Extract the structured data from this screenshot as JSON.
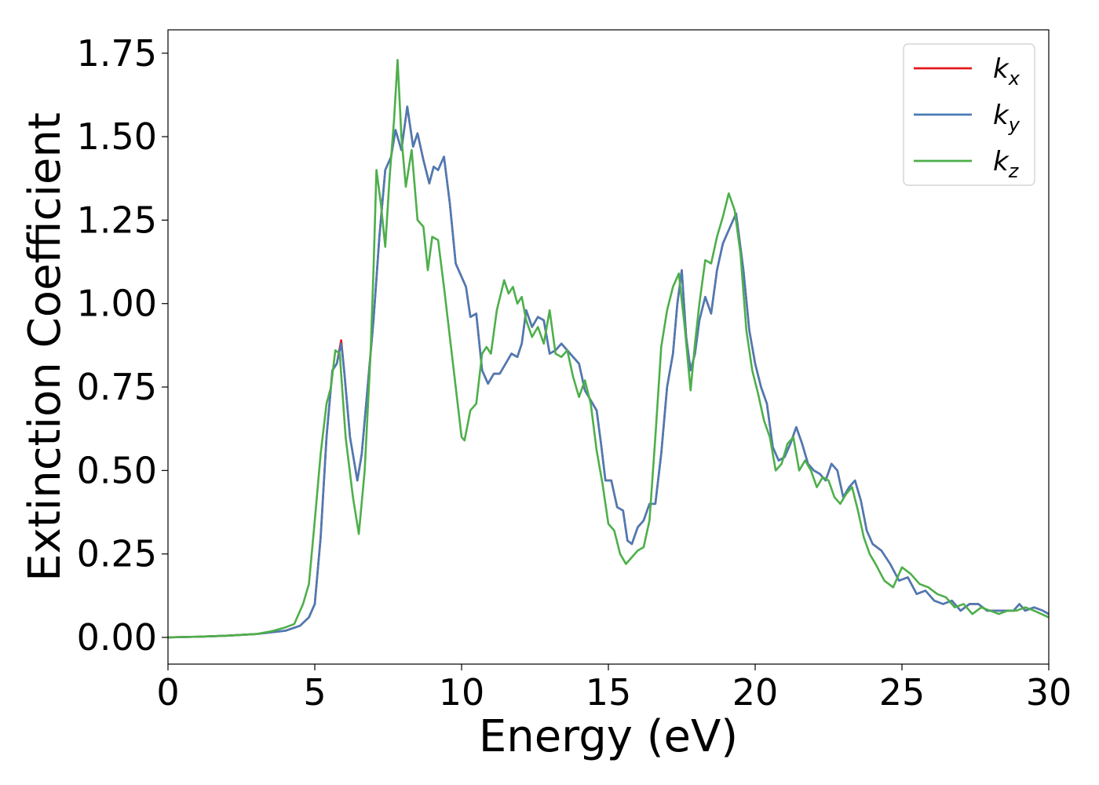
{
  "chart_data": {
    "type": "line",
    "xlabel": "Energy (eV)",
    "ylabel": "Extinction Coefficient",
    "xlim": [
      0,
      30
    ],
    "ylim": [
      -0.08,
      1.82
    ],
    "xticks": [
      0,
      5,
      10,
      15,
      20,
      25,
      30
    ],
    "xtick_labels": [
      "0",
      "5",
      "10",
      "15",
      "20",
      "25",
      "30"
    ],
    "yticks": [
      0.0,
      0.25,
      0.5,
      0.75,
      1.0,
      1.25,
      1.5,
      1.75
    ],
    "ytick_labels": [
      "0.00",
      "0.25",
      "0.50",
      "0.75",
      "1.00",
      "1.25",
      "1.50",
      "1.75"
    ],
    "grid": false,
    "legend_position": "top-right",
    "series": [
      {
        "name": "k_x",
        "label_base": "k",
        "label_sub": "x",
        "color": "#e41a1c",
        "x": [
          0,
          1,
          2,
          3,
          3.5,
          4,
          4.5,
          4.8,
          5,
          5.2,
          5.4,
          5.6,
          5.75,
          5.9,
          6.0,
          6.2,
          6.45,
          6.6,
          6.8,
          7.0,
          7.2,
          7.4,
          7.6,
          7.75,
          7.95,
          8.15,
          8.35,
          8.5,
          8.7,
          8.9,
          9.05,
          9.2,
          9.4,
          9.6,
          9.8,
          10.0,
          10.15,
          10.3,
          10.5,
          10.7,
          10.9,
          11.1,
          11.3,
          11.5,
          11.7,
          11.9,
          12.05,
          12.2,
          12.4,
          12.6,
          12.8,
          13.0,
          13.2,
          13.4,
          13.6,
          13.8,
          14.0,
          14.2,
          14.4,
          14.6,
          14.75,
          14.9,
          15.1,
          15.3,
          15.5,
          15.65,
          15.8,
          16.0,
          16.2,
          16.4,
          16.6,
          16.8,
          17.0,
          17.2,
          17.35,
          17.5,
          17.65,
          17.8,
          17.95,
          18.1,
          18.3,
          18.5,
          18.7,
          18.9,
          19.1,
          19.35,
          19.6,
          19.8,
          20.0,
          20.2,
          20.4,
          20.6,
          20.8,
          21.0,
          21.2,
          21.4,
          21.6,
          21.8,
          22.0,
          22.2,
          22.4,
          22.6,
          22.8,
          23.0,
          23.2,
          23.4,
          23.6,
          23.8,
          24.0,
          24.3,
          24.6,
          24.9,
          25.2,
          25.5,
          25.8,
          26.1,
          26.4,
          26.7,
          27.0,
          27.3,
          27.6,
          27.9,
          28.2,
          28.5,
          28.8,
          29.0,
          29.2,
          29.5,
          29.8,
          30.0
        ],
        "y": [
          0,
          0.002,
          0.005,
          0.01,
          0.015,
          0.02,
          0.035,
          0.06,
          0.1,
          0.3,
          0.6,
          0.8,
          0.82,
          0.89,
          0.8,
          0.6,
          0.47,
          0.55,
          0.75,
          0.95,
          1.2,
          1.4,
          1.44,
          1.52,
          1.46,
          1.59,
          1.47,
          1.51,
          1.43,
          1.36,
          1.41,
          1.4,
          1.44,
          1.3,
          1.12,
          1.08,
          1.05,
          0.96,
          0.97,
          0.8,
          0.76,
          0.79,
          0.79,
          0.82,
          0.85,
          0.84,
          0.88,
          0.98,
          0.93,
          0.96,
          0.95,
          0.85,
          0.86,
          0.88,
          0.86,
          0.84,
          0.82,
          0.74,
          0.71,
          0.68,
          0.58,
          0.47,
          0.47,
          0.39,
          0.38,
          0.29,
          0.28,
          0.33,
          0.35,
          0.4,
          0.4,
          0.55,
          0.75,
          0.85,
          1.0,
          1.1,
          0.9,
          0.8,
          0.85,
          0.95,
          1.02,
          0.97,
          1.1,
          1.18,
          1.22,
          1.27,
          1.1,
          0.92,
          0.82,
          0.75,
          0.7,
          0.57,
          0.53,
          0.54,
          0.58,
          0.63,
          0.58,
          0.52,
          0.5,
          0.49,
          0.47,
          0.52,
          0.5,
          0.42,
          0.45,
          0.47,
          0.41,
          0.32,
          0.28,
          0.26,
          0.22,
          0.17,
          0.18,
          0.13,
          0.14,
          0.11,
          0.1,
          0.11,
          0.08,
          0.1,
          0.1,
          0.08,
          0.08,
          0.08,
          0.08,
          0.1,
          0.08,
          0.09,
          0.08,
          0.07
        ]
      },
      {
        "name": "k_y",
        "label_base": "k",
        "label_sub": "y",
        "color": "#4a7bb5",
        "x": [
          0,
          1,
          2,
          3,
          3.5,
          4,
          4.5,
          4.8,
          5,
          5.2,
          5.4,
          5.6,
          5.75,
          5.9,
          6.0,
          6.2,
          6.45,
          6.6,
          6.8,
          7.0,
          7.2,
          7.4,
          7.6,
          7.75,
          7.95,
          8.15,
          8.35,
          8.5,
          8.7,
          8.9,
          9.05,
          9.2,
          9.4,
          9.6,
          9.8,
          10.0,
          10.15,
          10.3,
          10.5,
          10.7,
          10.9,
          11.1,
          11.3,
          11.5,
          11.7,
          11.9,
          12.05,
          12.2,
          12.4,
          12.6,
          12.8,
          13.0,
          13.2,
          13.4,
          13.6,
          13.8,
          14.0,
          14.2,
          14.4,
          14.6,
          14.75,
          14.9,
          15.1,
          15.3,
          15.5,
          15.65,
          15.8,
          16.0,
          16.2,
          16.4,
          16.6,
          16.8,
          17.0,
          17.2,
          17.35,
          17.5,
          17.65,
          17.8,
          17.95,
          18.1,
          18.3,
          18.5,
          18.7,
          18.9,
          19.1,
          19.35,
          19.6,
          19.8,
          20.0,
          20.2,
          20.4,
          20.6,
          20.8,
          21.0,
          21.2,
          21.4,
          21.6,
          21.8,
          22.0,
          22.2,
          22.4,
          22.6,
          22.8,
          23.0,
          23.2,
          23.4,
          23.6,
          23.8,
          24.0,
          24.3,
          24.6,
          24.9,
          25.2,
          25.5,
          25.8,
          26.1,
          26.4,
          26.7,
          27.0,
          27.3,
          27.6,
          27.9,
          28.2,
          28.5,
          28.8,
          29.0,
          29.2,
          29.5,
          29.8,
          30.0
        ],
        "y": [
          0,
          0.002,
          0.005,
          0.01,
          0.015,
          0.02,
          0.035,
          0.06,
          0.1,
          0.3,
          0.6,
          0.8,
          0.82,
          0.88,
          0.8,
          0.6,
          0.47,
          0.55,
          0.75,
          0.95,
          1.2,
          1.4,
          1.44,
          1.52,
          1.46,
          1.59,
          1.47,
          1.51,
          1.43,
          1.36,
          1.41,
          1.4,
          1.44,
          1.3,
          1.12,
          1.08,
          1.05,
          0.96,
          0.97,
          0.8,
          0.76,
          0.79,
          0.79,
          0.82,
          0.85,
          0.84,
          0.88,
          0.98,
          0.93,
          0.96,
          0.95,
          0.85,
          0.86,
          0.88,
          0.86,
          0.84,
          0.82,
          0.74,
          0.71,
          0.68,
          0.58,
          0.47,
          0.47,
          0.39,
          0.38,
          0.29,
          0.28,
          0.33,
          0.35,
          0.4,
          0.4,
          0.55,
          0.75,
          0.85,
          1.0,
          1.1,
          0.9,
          0.8,
          0.85,
          0.95,
          1.02,
          0.97,
          1.1,
          1.18,
          1.22,
          1.27,
          1.1,
          0.92,
          0.82,
          0.75,
          0.7,
          0.57,
          0.53,
          0.54,
          0.58,
          0.63,
          0.58,
          0.52,
          0.5,
          0.49,
          0.47,
          0.52,
          0.5,
          0.42,
          0.45,
          0.47,
          0.41,
          0.32,
          0.28,
          0.26,
          0.22,
          0.17,
          0.18,
          0.13,
          0.14,
          0.11,
          0.1,
          0.11,
          0.08,
          0.1,
          0.1,
          0.08,
          0.08,
          0.08,
          0.08,
          0.1,
          0.08,
          0.09,
          0.08,
          0.07
        ]
      },
      {
        "name": "k_z",
        "label_base": "k",
        "label_sub": "z",
        "color": "#4daf4a",
        "x": [
          0,
          1,
          2,
          3,
          3.5,
          4,
          4.3,
          4.6,
          4.8,
          5.0,
          5.2,
          5.4,
          5.55,
          5.7,
          5.85,
          6.05,
          6.3,
          6.5,
          6.7,
          6.9,
          7.0,
          7.1,
          7.25,
          7.4,
          7.55,
          7.7,
          7.82,
          7.95,
          8.1,
          8.3,
          8.5,
          8.7,
          8.85,
          9.0,
          9.2,
          9.4,
          9.6,
          9.8,
          10.0,
          10.1,
          10.3,
          10.5,
          10.7,
          10.85,
          11.0,
          11.2,
          11.45,
          11.6,
          11.75,
          11.9,
          12.05,
          12.2,
          12.4,
          12.6,
          12.8,
          13.0,
          13.2,
          13.4,
          13.6,
          13.8,
          14.0,
          14.2,
          14.4,
          14.6,
          14.8,
          15.0,
          15.2,
          15.4,
          15.6,
          15.8,
          16.0,
          16.2,
          16.4,
          16.6,
          16.8,
          17.0,
          17.2,
          17.4,
          17.6,
          17.8,
          17.95,
          18.1,
          18.3,
          18.5,
          18.7,
          18.9,
          19.1,
          19.3,
          19.5,
          19.7,
          19.9,
          20.1,
          20.3,
          20.5,
          20.7,
          20.9,
          21.1,
          21.3,
          21.5,
          21.7,
          21.9,
          22.1,
          22.3,
          22.5,
          22.7,
          22.9,
          23.1,
          23.3,
          23.5,
          23.7,
          23.9,
          24.1,
          24.4,
          24.7,
          25.0,
          25.3,
          25.6,
          25.9,
          26.2,
          26.5,
          26.8,
          27.1,
          27.4,
          27.7,
          28.0,
          28.3,
          28.6,
          28.9,
          29.2,
          29.5,
          30.0
        ],
        "y": [
          0,
          0.002,
          0.005,
          0.01,
          0.018,
          0.03,
          0.04,
          0.1,
          0.16,
          0.35,
          0.55,
          0.7,
          0.75,
          0.86,
          0.85,
          0.6,
          0.42,
          0.31,
          0.5,
          0.85,
          1.1,
          1.4,
          1.3,
          1.17,
          1.38,
          1.55,
          1.73,
          1.5,
          1.35,
          1.46,
          1.25,
          1.23,
          1.1,
          1.2,
          1.19,
          1.05,
          0.9,
          0.75,
          0.6,
          0.59,
          0.68,
          0.7,
          0.85,
          0.87,
          0.85,
          0.98,
          1.07,
          1.03,
          1.05,
          1.0,
          1.02,
          0.95,
          0.9,
          0.93,
          0.88,
          0.98,
          0.85,
          0.84,
          0.86,
          0.78,
          0.72,
          0.77,
          0.7,
          0.56,
          0.46,
          0.34,
          0.32,
          0.25,
          0.22,
          0.24,
          0.26,
          0.27,
          0.35,
          0.6,
          0.87,
          0.98,
          1.05,
          1.09,
          0.93,
          0.74,
          0.88,
          1.0,
          1.13,
          1.12,
          1.2,
          1.26,
          1.33,
          1.28,
          1.15,
          0.92,
          0.8,
          0.73,
          0.65,
          0.6,
          0.5,
          0.52,
          0.58,
          0.6,
          0.5,
          0.53,
          0.5,
          0.45,
          0.48,
          0.47,
          0.42,
          0.4,
          0.43,
          0.45,
          0.38,
          0.3,
          0.25,
          0.22,
          0.17,
          0.15,
          0.21,
          0.19,
          0.16,
          0.15,
          0.13,
          0.12,
          0.09,
          0.1,
          0.07,
          0.09,
          0.08,
          0.07,
          0.08,
          0.08,
          0.09,
          0.08,
          0.06
        ]
      }
    ]
  }
}
